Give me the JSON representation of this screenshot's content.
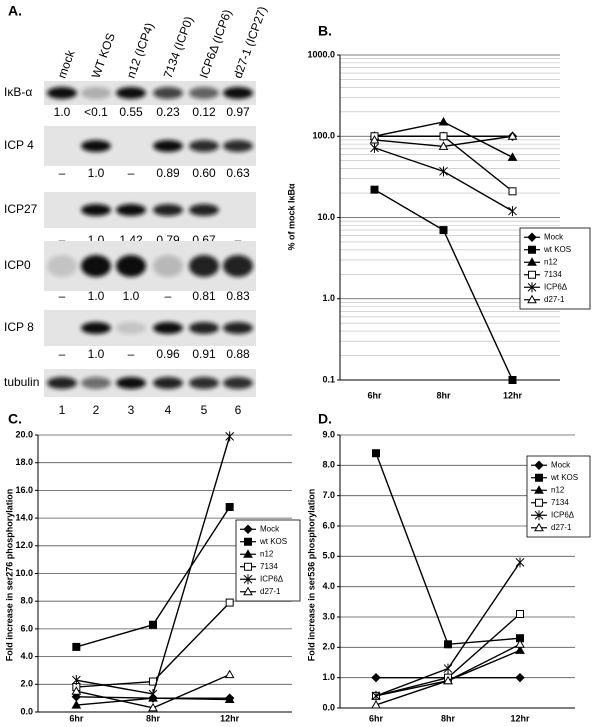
{
  "blot": {
    "label": "A.",
    "lanes": [
      "mock",
      "WT KOS",
      "n12 (ICP4)",
      "7134 (ICP0)",
      "ICP6Δ (ICP6)",
      "d27-1 (ICP27)"
    ],
    "rows": [
      {
        "name": "IκB-α",
        "values": [
          "1.0",
          "<0.1",
          "0.55",
          "0.23",
          "0.12",
          "0.97"
        ]
      },
      {
        "name": "ICP 4",
        "values": [
          "–",
          "1.0",
          "–",
          "0.89",
          "0.60",
          "0.63"
        ]
      },
      {
        "name": "ICP27",
        "values": [
          "–",
          "1.0",
          "1.42",
          "0.79",
          "0.67",
          "–"
        ]
      },
      {
        "name": "ICP0",
        "values": [
          "–",
          "1.0",
          "1.0",
          "–",
          "0.81",
          "0.83"
        ]
      },
      {
        "name": "ICP 8",
        "values": [
          "–",
          "1.0",
          "–",
          "0.96",
          "0.91",
          "0.88"
        ]
      },
      {
        "name": "tubulin"
      }
    ],
    "lane_numbers": [
      "1",
      "2",
      "3",
      "4",
      "5",
      "6"
    ]
  },
  "chart_data": [
    {
      "type": "line",
      "panel": "B.",
      "y_label": "% of mock IκBα",
      "yscale": "log",
      "grid": true,
      "minor_grid": true,
      "categories": [
        "6hr",
        "8hr",
        "12hr"
      ],
      "ylim": [
        0.1,
        1000
      ],
      "yticks": [
        {
          "value": 0.1,
          "label": "0.1"
        },
        {
          "value": 1,
          "label": "1.0"
        },
        {
          "value": 10,
          "label": "10.0"
        },
        {
          "value": 100,
          "label": "100.0"
        },
        {
          "value": 1000,
          "label": "1000.0"
        }
      ],
      "series": [
        {
          "name": "Mock",
          "color": "#000000",
          "marker": "diamond",
          "values": [
            100,
            100,
            100
          ]
        },
        {
          "name": "wt KOS",
          "color": "#000000",
          "marker": "square",
          "values": [
            22,
            7,
            0.1
          ]
        },
        {
          "name": "n12",
          "color": "#000000",
          "marker": "triangle",
          "values": [
            100,
            150,
            55
          ]
        },
        {
          "name": "7134",
          "color": "#000000",
          "marker": "square-open",
          "values": [
            100,
            100,
            21
          ]
        },
        {
          "name": "ICP6Δ",
          "color": "#000000",
          "marker": "star",
          "values": [
            72,
            37,
            12
          ]
        },
        {
          "name": "d27-1",
          "color": "#000000",
          "marker": "triangle-open",
          "values": [
            90,
            75,
            100
          ]
        }
      ]
    },
    {
      "type": "line",
      "panel": "C.",
      "y_label": "Fold increase in ser276 phosphorylation",
      "grid": true,
      "categories": [
        "6hr",
        "8hr",
        "12hr"
      ],
      "ylim": [
        0,
        20
      ],
      "yticks": [
        {
          "value": 0,
          "label": "0.0"
        },
        {
          "value": 2,
          "label": "2.0"
        },
        {
          "value": 4,
          "label": "4.0"
        },
        {
          "value": 6,
          "label": "6.0"
        },
        {
          "value": 8,
          "label": "8.0"
        },
        {
          "value": 10,
          "label": "10.0"
        },
        {
          "value": 12,
          "label": "12.0"
        },
        {
          "value": 14,
          "label": "14.0"
        },
        {
          "value": 16,
          "label": "16.0"
        },
        {
          "value": 18,
          "label": "18.0"
        },
        {
          "value": 20,
          "label": "20.0"
        }
      ],
      "series": [
        {
          "name": "Mock",
          "color": "#000000",
          "marker": "diamond",
          "values": [
            1.1,
            1.0,
            1.0
          ]
        },
        {
          "name": "wt KOS",
          "color": "#000000",
          "marker": "square",
          "values": [
            4.7,
            6.3,
            14.8
          ]
        },
        {
          "name": "n12",
          "color": "#000000",
          "marker": "triangle",
          "values": [
            0.5,
            1.0,
            0.9
          ]
        },
        {
          "name": "7134",
          "color": "#000000",
          "marker": "square-open",
          "values": [
            1.8,
            2.2,
            7.9
          ]
        },
        {
          "name": "ICP6Δ",
          "color": "#000000",
          "marker": "star",
          "values": [
            2.3,
            1.3,
            19.9
          ]
        },
        {
          "name": "d27-1",
          "color": "#000000",
          "marker": "triangle-open",
          "values": [
            1.5,
            0.3,
            2.7
          ]
        }
      ]
    },
    {
      "type": "line",
      "panel": "D.",
      "y_label": "Fold increase in ser536 phosphorylation",
      "grid": true,
      "categories": [
        "6hr",
        "8hr",
        "12hr"
      ],
      "ylim": [
        0,
        9
      ],
      "yticks": [
        {
          "value": 0,
          "label": "0.0"
        },
        {
          "value": 1,
          "label": "1.0"
        },
        {
          "value": 2,
          "label": "2.0"
        },
        {
          "value": 3,
          "label": "3.0"
        },
        {
          "value": 4,
          "label": "4.0"
        },
        {
          "value": 5,
          "label": "5.0"
        },
        {
          "value": 6,
          "label": "6.0"
        },
        {
          "value": 7,
          "label": "7.0"
        },
        {
          "value": 8,
          "label": "8.0"
        },
        {
          "value": 9,
          "label": "9.0"
        }
      ],
      "series": [
        {
          "name": "Mock",
          "color": "#000000",
          "marker": "diamond",
          "values": [
            1.0,
            1.0,
            1.0
          ]
        },
        {
          "name": "wt KOS",
          "color": "#000000",
          "marker": "square",
          "values": [
            8.4,
            2.1,
            2.3
          ]
        },
        {
          "name": "n12",
          "color": "#000000",
          "marker": "triangle",
          "values": [
            0.4,
            0.9,
            1.9
          ]
        },
        {
          "name": "7134",
          "color": "#000000",
          "marker": "square-open",
          "values": [
            0.4,
            1.0,
            3.1
          ]
        },
        {
          "name": "ICP6Δ",
          "color": "#000000",
          "marker": "star",
          "values": [
            0.4,
            1.3,
            4.8
          ]
        },
        {
          "name": "d27-1",
          "color": "#000000",
          "marker": "triangle-open",
          "values": [
            0.1,
            0.9,
            2.1
          ]
        }
      ]
    }
  ]
}
